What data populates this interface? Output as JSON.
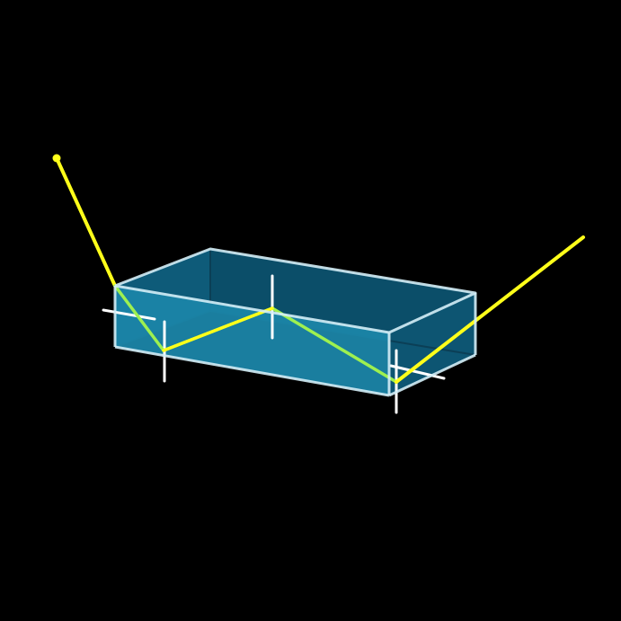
{
  "scene": {
    "background_color": "#000000",
    "box": {
      "front_face_color": "#1b85a8",
      "back_face_color": "#0b4e69",
      "edge_color": "#d4eef7"
    },
    "ray": {
      "outside_color": "#ffff1a",
      "inside_color": "#9ef050",
      "endpoint_marker": "dot"
    },
    "normals": {
      "color": "#ffffff",
      "count": 4
    },
    "reflection_points": 4
  }
}
